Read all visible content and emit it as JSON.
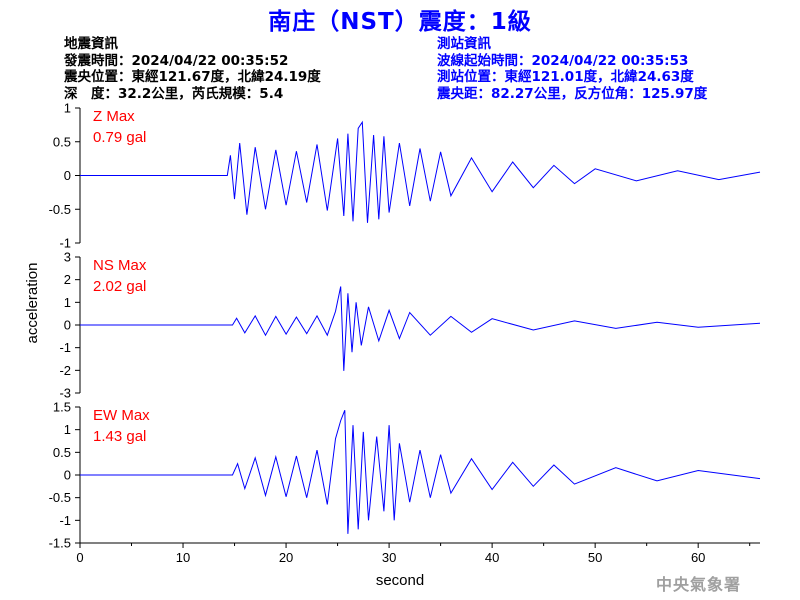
{
  "title": "南庄（NST）震度：1級",
  "quake_info": {
    "heading": "地震資訊",
    "time": "發震時間：2024/04/22 00:35:52",
    "epicenter": "震央位置：東經121.67度，北緯24.19度",
    "depth": "深　度：32.2公里，芮氏規模：5.4"
  },
  "station_info": {
    "heading": "測站資訊",
    "wave_start": "波線起始時間：2024/04/22 00:35:53",
    "location": "測站位置：東經121.01度，北緯24.63度",
    "distance": "震央距：82.27公里，反方位角：125.97度"
  },
  "footer": "中央氣象署",
  "colors": {
    "title": "#0000ff",
    "trace": "#0000ff",
    "max_label": "#ff0000",
    "text": "#000000"
  },
  "chart_data": {
    "type": "line",
    "xlabel": "second",
    "ylabel": "acceleration",
    "xlim": [
      0,
      66
    ],
    "xticks": [
      0,
      10,
      20,
      30,
      40,
      50,
      60
    ],
    "panels": [
      {
        "component": "Z",
        "max_label": "Z Max",
        "max_value": "0.79 gal",
        "ylim": [
          -1,
          1
        ],
        "yticks": [
          1,
          0.5,
          0,
          -0.5,
          -1
        ],
        "series": [
          {
            "x": [
              0,
              14.3,
              14.6,
              15.0,
              15.5,
              16.2,
              17.0,
              18.0,
              19.0,
              20.0,
              21.0,
              22.0,
              23.0,
              24.0,
              25.0,
              25.6,
              26.0,
              26.5,
              27.0,
              27.4,
              27.9,
              28.5,
              29.0,
              29.5,
              30.0,
              31.0,
              32.0,
              33.0,
              34.0,
              35.0,
              36.0,
              38.0,
              40.0,
              42.0,
              44.0,
              46.0,
              48.0,
              50.0,
              54.0,
              58.0,
              62.0,
              66.0
            ],
            "y": [
              0,
              0,
              0.3,
              -0.35,
              0.48,
              -0.58,
              0.42,
              -0.5,
              0.38,
              -0.44,
              0.36,
              -0.4,
              0.46,
              -0.52,
              0.55,
              -0.6,
              0.62,
              -0.68,
              0.7,
              0.79,
              -0.7,
              0.6,
              -0.65,
              0.58,
              -0.55,
              0.48,
              -0.45,
              0.4,
              -0.38,
              0.35,
              -0.3,
              0.26,
              -0.24,
              0.2,
              -0.18,
              0.15,
              -0.12,
              0.1,
              -0.08,
              0.07,
              -0.06,
              0.05
            ]
          }
        ]
      },
      {
        "component": "NS",
        "max_label": "NS Max",
        "max_value": "2.02 gal",
        "ylim": [
          -3,
          3
        ],
        "yticks": [
          3,
          2,
          1,
          0,
          -1,
          -2,
          -3
        ],
        "series": [
          {
            "x": [
              0,
              14.8,
              15.2,
              16.0,
              17.0,
              18.0,
              19.0,
              20.0,
              21.0,
              22.0,
              23.0,
              24.0,
              24.8,
              25.3,
              25.6,
              26.0,
              26.4,
              26.8,
              27.3,
              28.0,
              29.0,
              30.0,
              31.0,
              32.0,
              34.0,
              36.0,
              38.0,
              40.0,
              44.0,
              48.0,
              52.0,
              56.0,
              60.0,
              66.0
            ],
            "y": [
              0,
              0,
              0.3,
              -0.35,
              0.4,
              -0.45,
              0.38,
              -0.4,
              0.35,
              -0.38,
              0.4,
              -0.45,
              0.6,
              1.7,
              -2.02,
              1.4,
              -1.2,
              1.0,
              -0.9,
              0.8,
              -0.7,
              0.65,
              -0.6,
              0.55,
              -0.45,
              0.38,
              -0.32,
              0.28,
              -0.22,
              0.18,
              -0.15,
              0.12,
              -0.1,
              0.08
            ]
          }
        ]
      },
      {
        "component": "EW",
        "max_label": "EW Max",
        "max_value": "1.43 gal",
        "ylim": [
          -1.5,
          1.5
        ],
        "yticks": [
          1.5,
          1,
          0.5,
          0,
          -0.5,
          -1,
          -1.5
        ],
        "series": [
          {
            "x": [
              0,
              14.8,
              15.3,
              16.0,
              17.0,
              18.0,
              19.0,
              20.0,
              21.0,
              22.0,
              23.0,
              24.0,
              24.8,
              25.3,
              25.7,
              26.0,
              26.5,
              27.0,
              27.5,
              28.0,
              28.8,
              29.5,
              30.0,
              30.5,
              31.0,
              32.0,
              33.0,
              34.0,
              35.0,
              36.0,
              38.0,
              40.0,
              42.0,
              44.0,
              46.0,
              48.0,
              52.0,
              56.0,
              60.0,
              66.0
            ],
            "y": [
              0,
              0,
              0.25,
              -0.3,
              0.38,
              -0.45,
              0.4,
              -0.48,
              0.42,
              -0.5,
              0.55,
              -0.65,
              0.8,
              1.2,
              1.43,
              -1.3,
              1.1,
              -1.2,
              0.95,
              -1.0,
              0.85,
              -0.8,
              1.1,
              -1.0,
              0.7,
              -0.6,
              0.55,
              -0.5,
              0.45,
              -0.4,
              0.36,
              -0.32,
              0.28,
              -0.25,
              0.22,
              -0.2,
              0.16,
              -0.13,
              0.1,
              -0.08
            ]
          }
        ]
      }
    ]
  }
}
